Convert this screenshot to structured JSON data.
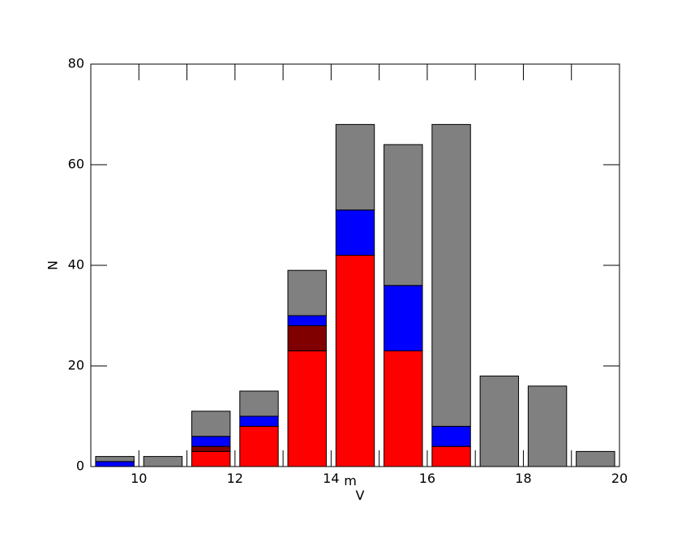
{
  "chart_data": {
    "type": "stacked_bar",
    "ylabel": "N",
    "xlabel": {
      "text": "m",
      "subscript": "V"
    },
    "x": [
      9.5,
      10.5,
      11.5,
      12.5,
      13.5,
      14.5,
      15.5,
      16.5,
      17.5,
      18.5,
      19.5
    ],
    "series": [
      {
        "color": "#ff0000",
        "values": [
          0,
          0,
          3,
          8,
          23,
          42,
          23,
          4,
          0,
          0,
          0
        ]
      },
      {
        "color": "#800000",
        "values": [
          0,
          0,
          1,
          0,
          5,
          0,
          0,
          0,
          0,
          0,
          0
        ]
      },
      {
        "color": "#0000ff",
        "values": [
          1,
          0,
          2,
          2,
          2,
          9,
          13,
          4,
          0,
          0,
          0
        ]
      },
      {
        "color": "#808080",
        "values": [
          1,
          2,
          5,
          5,
          9,
          17,
          28,
          60,
          18,
          16,
          3
        ]
      }
    ],
    "xlim": [
      9,
      20
    ],
    "xticks": [
      10,
      12,
      14,
      16,
      18,
      20
    ],
    "xminorticks": [
      9,
      11,
      13,
      15,
      17,
      19
    ],
    "ylim": [
      0,
      80
    ],
    "yticks": [
      0,
      20,
      40,
      60,
      80
    ]
  }
}
